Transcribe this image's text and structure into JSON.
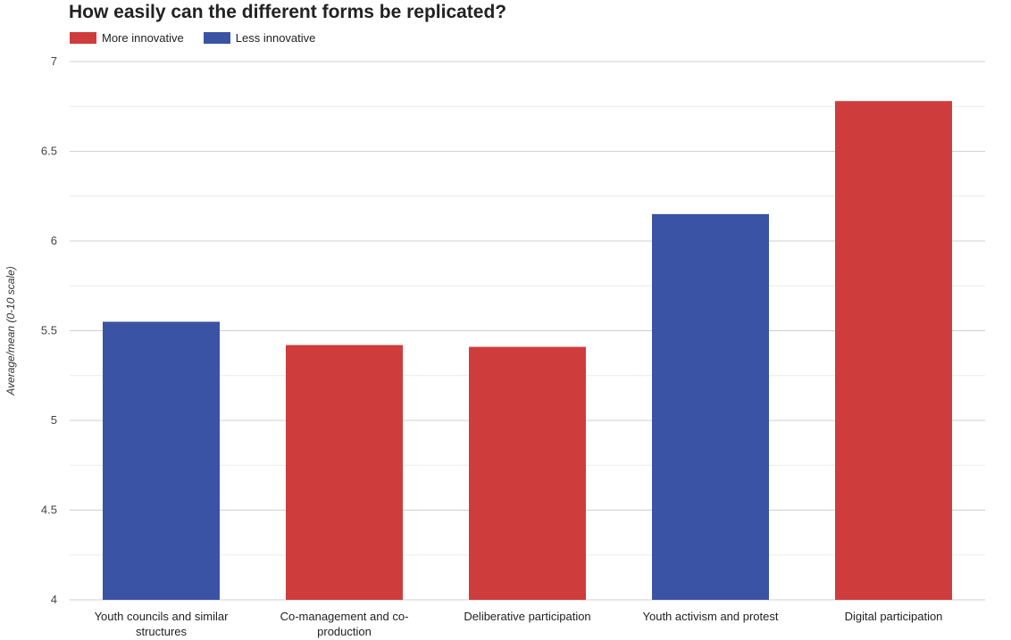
{
  "chart_data": {
    "type": "bar",
    "title": "How easily can the different forms be replicated?",
    "xlabel": "",
    "ylabel": "Average/mean (0-10 scale)",
    "ylim": [
      4,
      7
    ],
    "yticks": [
      "4",
      "4.5",
      "5",
      "5.5",
      "6",
      "6.5",
      "7"
    ],
    "grid": true,
    "legend_placement": "top-left",
    "legend": [
      {
        "label": "More innovative",
        "color": "#cf3c3c"
      },
      {
        "label": "Less innovative",
        "color": "#3b53a4"
      }
    ],
    "categories": [
      [
        "Youth councils and similar",
        "structures"
      ],
      [
        "Co-management and co-",
        "production"
      ],
      [
        "Deliberative participation"
      ],
      [
        "Youth activism and protest"
      ],
      [
        "Digital participation"
      ]
    ],
    "values": [
      5.55,
      5.42,
      5.41,
      6.15,
      6.78
    ],
    "bar_group": [
      "Less innovative",
      "More innovative",
      "More innovative",
      "Less innovative",
      "More innovative"
    ]
  }
}
